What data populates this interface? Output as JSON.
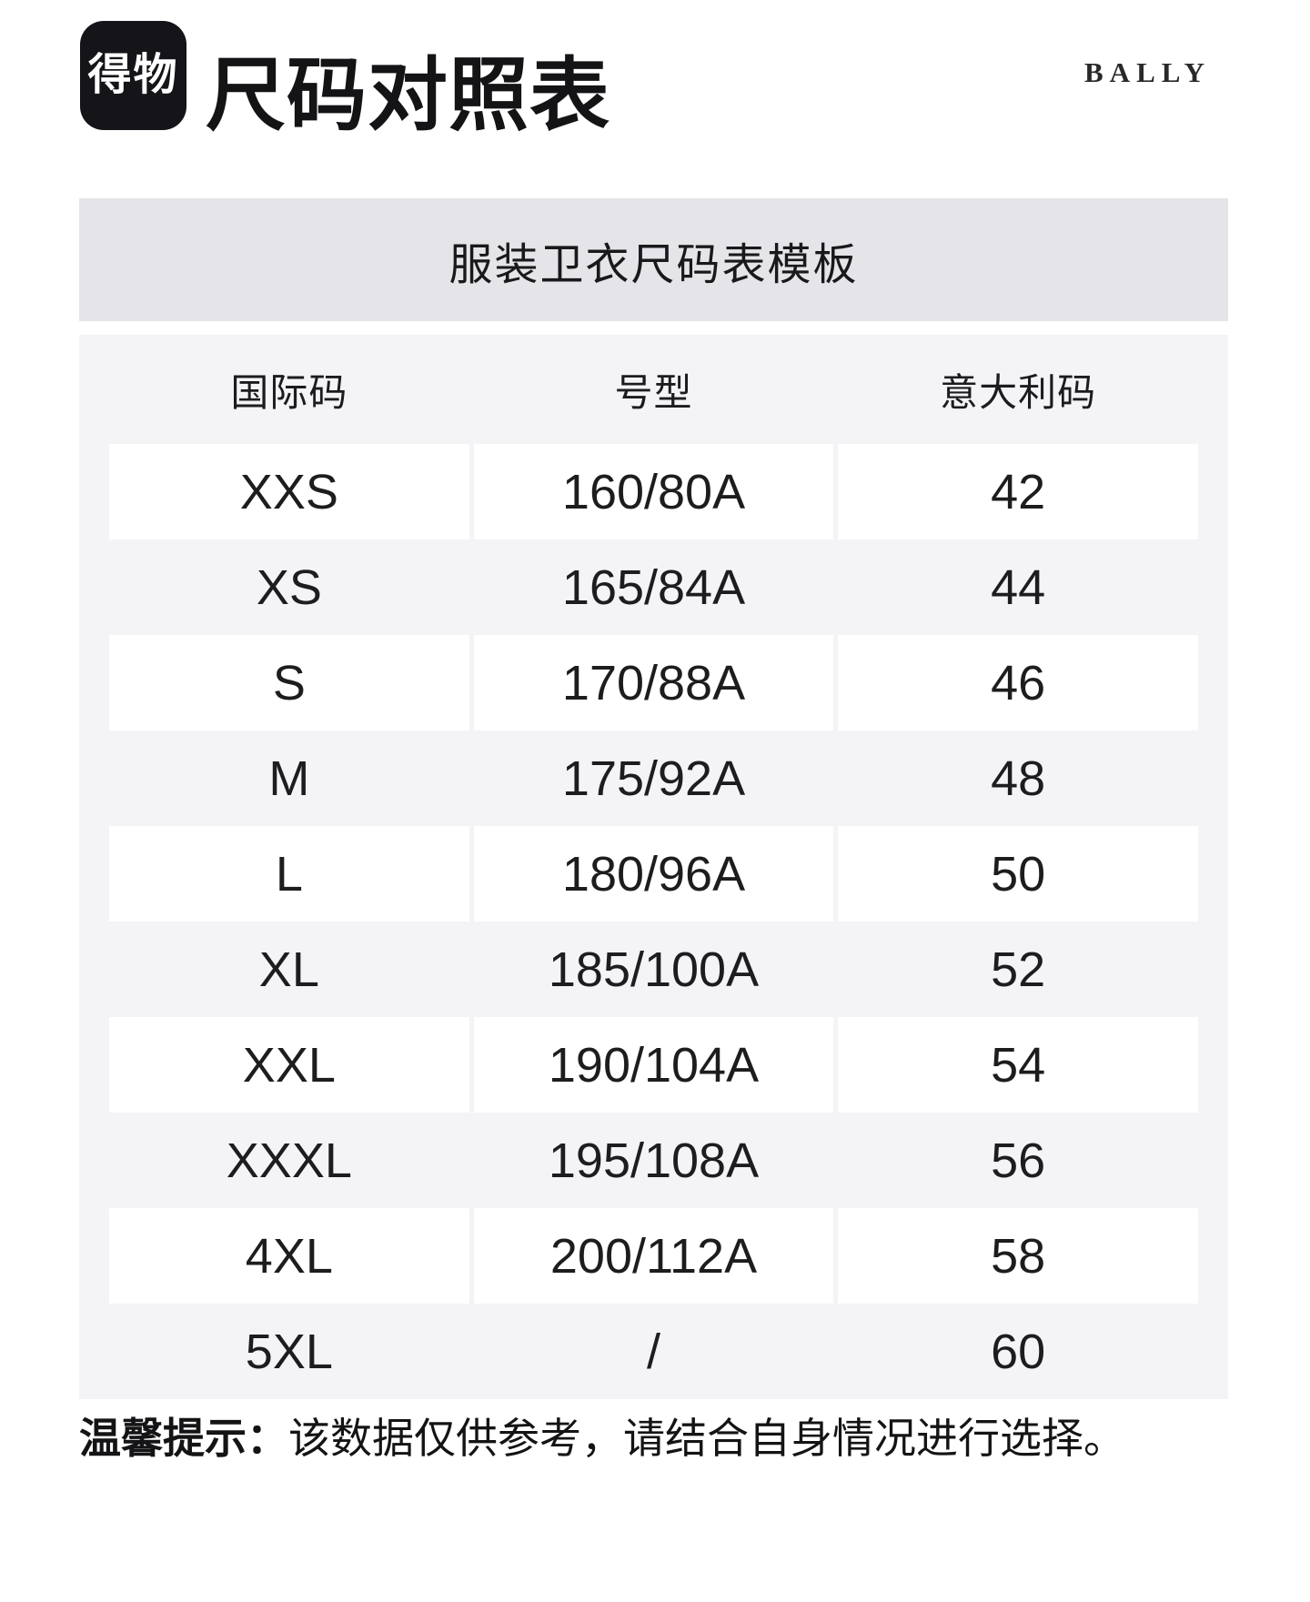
{
  "header": {
    "logo_text": "得物",
    "title": "尺码对照表",
    "brand": "BALLY"
  },
  "banner": {
    "title": "服装卫衣尺码表模板"
  },
  "size_table": {
    "columns": [
      "国际码",
      "号型",
      "意大利码"
    ],
    "rows": [
      {
        "intl": "XXS",
        "type": "160/80A",
        "italy": "42"
      },
      {
        "intl": "XS",
        "type": "165/84A",
        "italy": "44"
      },
      {
        "intl": "S",
        "type": "170/88A",
        "italy": "46"
      },
      {
        "intl": "M",
        "type": "175/92A",
        "italy": "48"
      },
      {
        "intl": "L",
        "type": "180/96A",
        "italy": "50"
      },
      {
        "intl": "XL",
        "type": "185/100A",
        "italy": "52"
      },
      {
        "intl": "XXL",
        "type": "190/104A",
        "italy": "54"
      },
      {
        "intl": "XXXL",
        "type": "195/108A",
        "italy": "56"
      },
      {
        "intl": "4XL",
        "type": "200/112A",
        "italy": "58"
      },
      {
        "intl": "5XL",
        "type": "/",
        "italy": "60"
      }
    ]
  },
  "footer": {
    "tip_label": "温馨提示：",
    "tip_text": "该数据仅供参考，请结合自身情况进行选择。"
  },
  "colors": {
    "banner_bg": "#e5e4e9",
    "table_bg": "#f4f4f7",
    "row_bg": "#ffffff",
    "logo_bg": "#141419",
    "text": "#1d1d1f"
  }
}
